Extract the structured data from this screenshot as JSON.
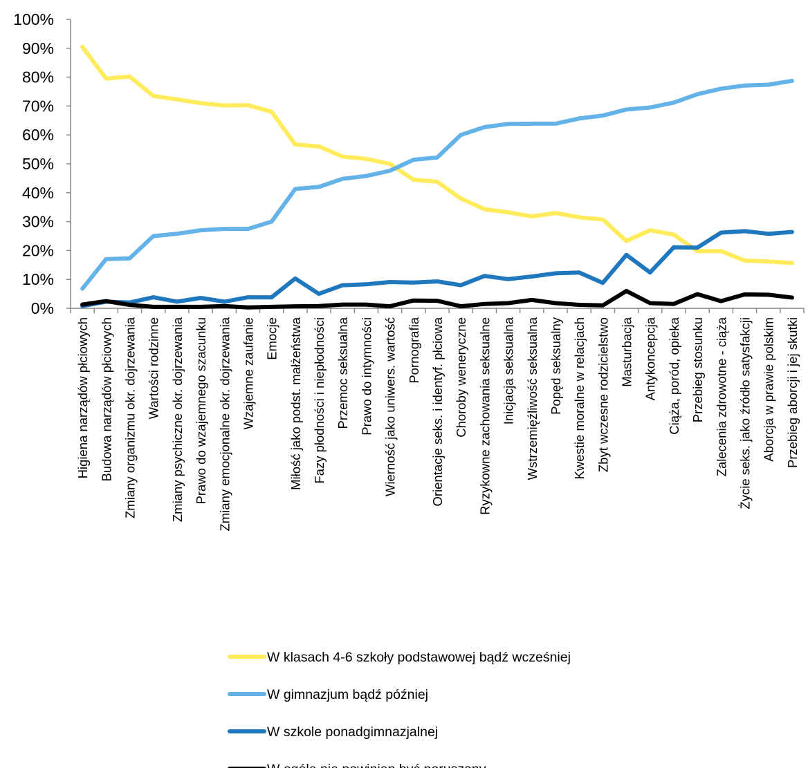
{
  "chart_data": {
    "type": "line",
    "title": "",
    "xlabel": "",
    "ylabel": "",
    "ylim": [
      0,
      100
    ],
    "y_ticks": [
      "0%",
      "10%",
      "20%",
      "30%",
      "40%",
      "50%",
      "60%",
      "70%",
      "80%",
      "90%",
      "100%"
    ],
    "grid": false,
    "legend_position": "bottom",
    "categories": [
      "Higiena narządów płciowych",
      "Budowa narządów płciowych",
      "Zmiany organizmu okr. dojrzewania",
      "Wartości rodzinne",
      "Zmiany psychiczne okr. dojrzewania",
      "Prawo do wzajemnego szacunku",
      "Zmiany emocjonalne okr. dojrzewania",
      "Wzajemne zaufanie",
      "Emocje",
      "Miłość jako podst. małżeństwa",
      "Fazy płodności i niepłodności",
      "Przemoc seksualna",
      "Prawo do intymności",
      "Wierność jako uniwers. wartość",
      "Pornografia",
      "Orientacje seks. i identyf. płciowa",
      "Choroby weneryczne",
      "Ryzykowne zachowania seksualne",
      "Inicjacja seksualna",
      "Wstrzemięźliwość seksualna",
      "Popęd seksualny",
      "Kwestie moralne w relacjach",
      "Zbyt wczesne rodzicielstwo",
      "Masturbacja",
      "Antykoncepcja",
      "Ciąża, poród, opieka",
      "Przebieg stosunku",
      "Zalecenia zdrowotne - ciąża",
      "Życie seks. jako źródło satysfakcji",
      "Aborcja w prawie polskim",
      "Przebieg aborcji i jej skutki"
    ],
    "series": [
      {
        "name": "W klasach 4-6 szkoły podstawowej bądź wcześniej",
        "color": "#ffeb5b",
        "values": [
          90.5,
          79.5,
          80.2,
          73.5,
          72.3,
          71.0,
          70.2,
          70.3,
          68.0,
          56.7,
          56.0,
          52.5,
          51.7,
          50.0,
          44.5,
          43.8,
          38.0,
          34.3,
          33.2,
          31.8,
          33.0,
          31.5,
          30.7,
          23.3,
          27.0,
          25.5,
          19.8,
          19.8,
          16.5,
          16.2,
          15.7
        ]
      },
      {
        "name": "W gimnazjum bądź później",
        "color": "#63b3e8",
        "values": [
          6.8,
          17.0,
          17.3,
          25.0,
          25.8,
          27.0,
          27.5,
          27.5,
          30.0,
          41.3,
          42.0,
          44.8,
          45.8,
          47.6,
          51.4,
          52.2,
          60.0,
          62.7,
          63.8,
          63.9,
          63.9,
          65.7,
          66.7,
          68.8,
          69.5,
          71.2,
          74.1,
          76.0,
          77.1,
          77.4,
          78.7
        ]
      },
      {
        "name": "W szkole ponadgimnazjalnej",
        "color": "#1f77be",
        "values": [
          0.8,
          2.3,
          2.0,
          3.8,
          2.3,
          3.6,
          2.3,
          3.8,
          3.8,
          10.3,
          5.0,
          8.0,
          8.3,
          9.1,
          8.9,
          9.3,
          8.0,
          11.2,
          10.1,
          11.0,
          12.1,
          12.4,
          8.8,
          18.5,
          12.4,
          21.1,
          21.0,
          26.2,
          26.7,
          25.8,
          26.4
        ]
      },
      {
        "name": "W ogóle nie powinien być poruszany",
        "color": "#000000",
        "values": [
          1.3,
          2.5,
          1.2,
          0.5,
          0.5,
          0.5,
          0.8,
          0.3,
          0.5,
          0.7,
          0.8,
          1.3,
          1.3,
          0.7,
          2.7,
          2.6,
          0.7,
          1.5,
          1.8,
          2.9,
          1.8,
          1.2,
          1.0,
          6.0,
          1.8,
          1.5,
          4.9,
          2.5,
          4.8,
          4.7,
          3.7
        ]
      }
    ]
  }
}
